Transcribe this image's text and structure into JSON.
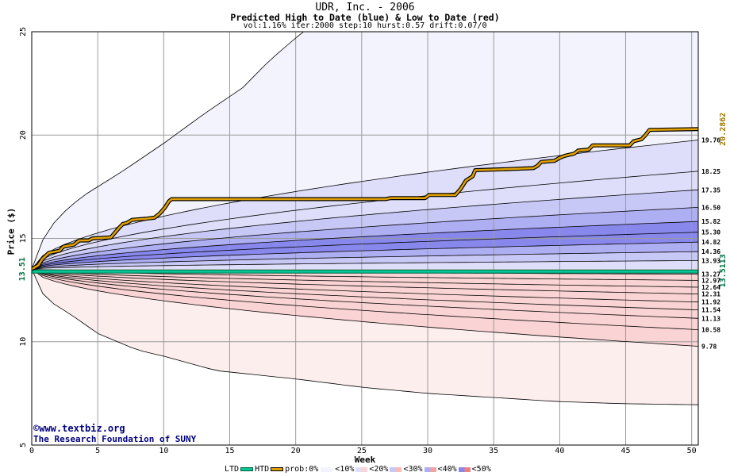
{
  "header": {
    "title": "UDR, Inc. - 2006",
    "subtitle": "Predicted High to Date (blue) &  Low to Date (red)",
    "params": "vol:1.16% iter:2000 step:10 hurst:0.57 drift:0.07/0"
  },
  "credit": {
    "line1": "©www.textbiz.org",
    "line2": "The Research Foundation of SUNY"
  },
  "legend": {
    "ltd": "LTD",
    "htd": "HTD",
    "prob": "prob:0%",
    "p10": "<10%",
    "p20": "<20%",
    "p30": "<30%",
    "p40": "<40%",
    "p50": "<50%"
  },
  "colors": {
    "ltd_line": "#00c896",
    "htd_line": "#e0a000",
    "blue_scale": [
      "#f3f3fd",
      "#dedefa",
      "#c8c8f6",
      "#aeaef2",
      "#8888ec"
    ],
    "red_scale": [
      "#fdeeee",
      "#fad4d4",
      "#f6bcbc",
      "#f4a2a2",
      "#f08080"
    ],
    "start_label": "#007040",
    "htd_label": "#a07800"
  },
  "chart_data": {
    "type": "area",
    "title": "UDR, Inc. - 2006",
    "xlabel": "Week",
    "ylabel": "Price ($)",
    "xlim": [
      0,
      50.5
    ],
    "ylim": [
      5,
      25
    ],
    "x_ticks": [
      0,
      5,
      10,
      15,
      20,
      25,
      30,
      35,
      40,
      45,
      50
    ],
    "y_ticks": [
      5,
      10,
      15,
      20,
      25
    ],
    "grid": true,
    "start_price": 13.5113,
    "start_label": "13.51",
    "ltd_value": 13.5113,
    "ltd_label": "13.5113",
    "htd_final": 20.2862,
    "htd_label": "20.2862",
    "upper_envelope": [
      [
        0,
        13.51
      ],
      [
        1,
        15.2
      ],
      [
        2,
        16.0
      ],
      [
        3,
        16.6
      ],
      [
        4,
        17.1
      ],
      [
        5,
        17.5
      ],
      [
        7,
        18.3
      ],
      [
        10,
        19.6
      ],
      [
        13,
        21.0
      ],
      [
        16,
        22.3
      ],
      [
        18,
        23.6
      ],
      [
        20,
        24.7
      ],
      [
        21,
        25.2
      ]
    ],
    "lower_envelope": [
      [
        0,
        13.51
      ],
      [
        1,
        12.1
      ],
      [
        3,
        11.3
      ],
      [
        5,
        10.4
      ],
      [
        8,
        9.6
      ],
      [
        10,
        9.3
      ],
      [
        14,
        8.6
      ],
      [
        20,
        8.2
      ],
      [
        25,
        7.8
      ],
      [
        30,
        7.5
      ],
      [
        35,
        7.3
      ],
      [
        40,
        7.1
      ],
      [
        45,
        7.0
      ],
      [
        50.5,
        6.95
      ]
    ],
    "upper_bands": [
      {
        "label": "19.76",
        "end": 19.76
      },
      {
        "label": "18.25",
        "end": 18.25
      },
      {
        "label": "17.35",
        "end": 17.35
      },
      {
        "label": "16.50",
        "end": 16.5
      },
      {
        "label": "15.82",
        "end": 15.82
      },
      {
        "label": "15.30",
        "end": 15.3
      },
      {
        "label": "14.82",
        "end": 14.82
      },
      {
        "label": "14.36",
        "end": 14.36
      },
      {
        "label": "13.93",
        "end": 13.93
      }
    ],
    "lower_bands": [
      {
        "label": "13.27",
        "end": 13.27
      },
      {
        "label": "12.97",
        "end": 12.97
      },
      {
        "label": "12.64",
        "end": 12.64
      },
      {
        "label": "12.31",
        "end": 12.31
      },
      {
        "label": "11.92",
        "end": 11.92
      },
      {
        "label": "11.54",
        "end": 11.54
      },
      {
        "label": "11.13",
        "end": 11.13
      },
      {
        "label": "10.58",
        "end": 10.58
      },
      {
        "label": "9.78",
        "end": 9.78
      }
    ],
    "htd_path": [
      [
        0,
        13.51
      ],
      [
        0.5,
        13.7
      ],
      [
        0.8,
        14.0
      ],
      [
        1.3,
        14.3
      ],
      [
        2.1,
        14.4
      ],
      [
        2.4,
        14.6
      ],
      [
        3.2,
        14.7
      ],
      [
        3.6,
        14.9
      ],
      [
        4.3,
        14.9
      ],
      [
        4.6,
        15.0
      ],
      [
        6.0,
        15.05
      ],
      [
        6.6,
        15.5
      ],
      [
        6.9,
        15.7
      ],
      [
        7.2,
        15.75
      ],
      [
        7.6,
        15.9
      ],
      [
        8.6,
        15.95
      ],
      [
        9.3,
        16.0
      ],
      [
        9.7,
        16.2
      ],
      [
        10.1,
        16.5
      ],
      [
        10.4,
        16.8
      ],
      [
        10.6,
        16.9
      ],
      [
        20.0,
        16.9
      ],
      [
        26.8,
        16.9
      ],
      [
        27.2,
        16.95
      ],
      [
        29.8,
        16.95
      ],
      [
        30.1,
        17.1
      ],
      [
        32.1,
        17.1
      ],
      [
        32.5,
        17.4
      ],
      [
        32.9,
        17.8
      ],
      [
        33.4,
        18.0
      ],
      [
        33.6,
        18.3
      ],
      [
        36.0,
        18.35
      ],
      [
        38.0,
        18.4
      ],
      [
        38.3,
        18.5
      ],
      [
        38.6,
        18.7
      ],
      [
        39.6,
        18.75
      ],
      [
        40.0,
        18.9
      ],
      [
        40.4,
        19.0
      ],
      [
        41.1,
        19.1
      ],
      [
        41.4,
        19.25
      ],
      [
        42.2,
        19.3
      ],
      [
        42.5,
        19.5
      ],
      [
        45.3,
        19.5
      ],
      [
        45.6,
        19.7
      ],
      [
        46.2,
        19.8
      ],
      [
        46.5,
        20.0
      ],
      [
        46.8,
        20.25
      ],
      [
        50.5,
        20.29
      ]
    ]
  }
}
